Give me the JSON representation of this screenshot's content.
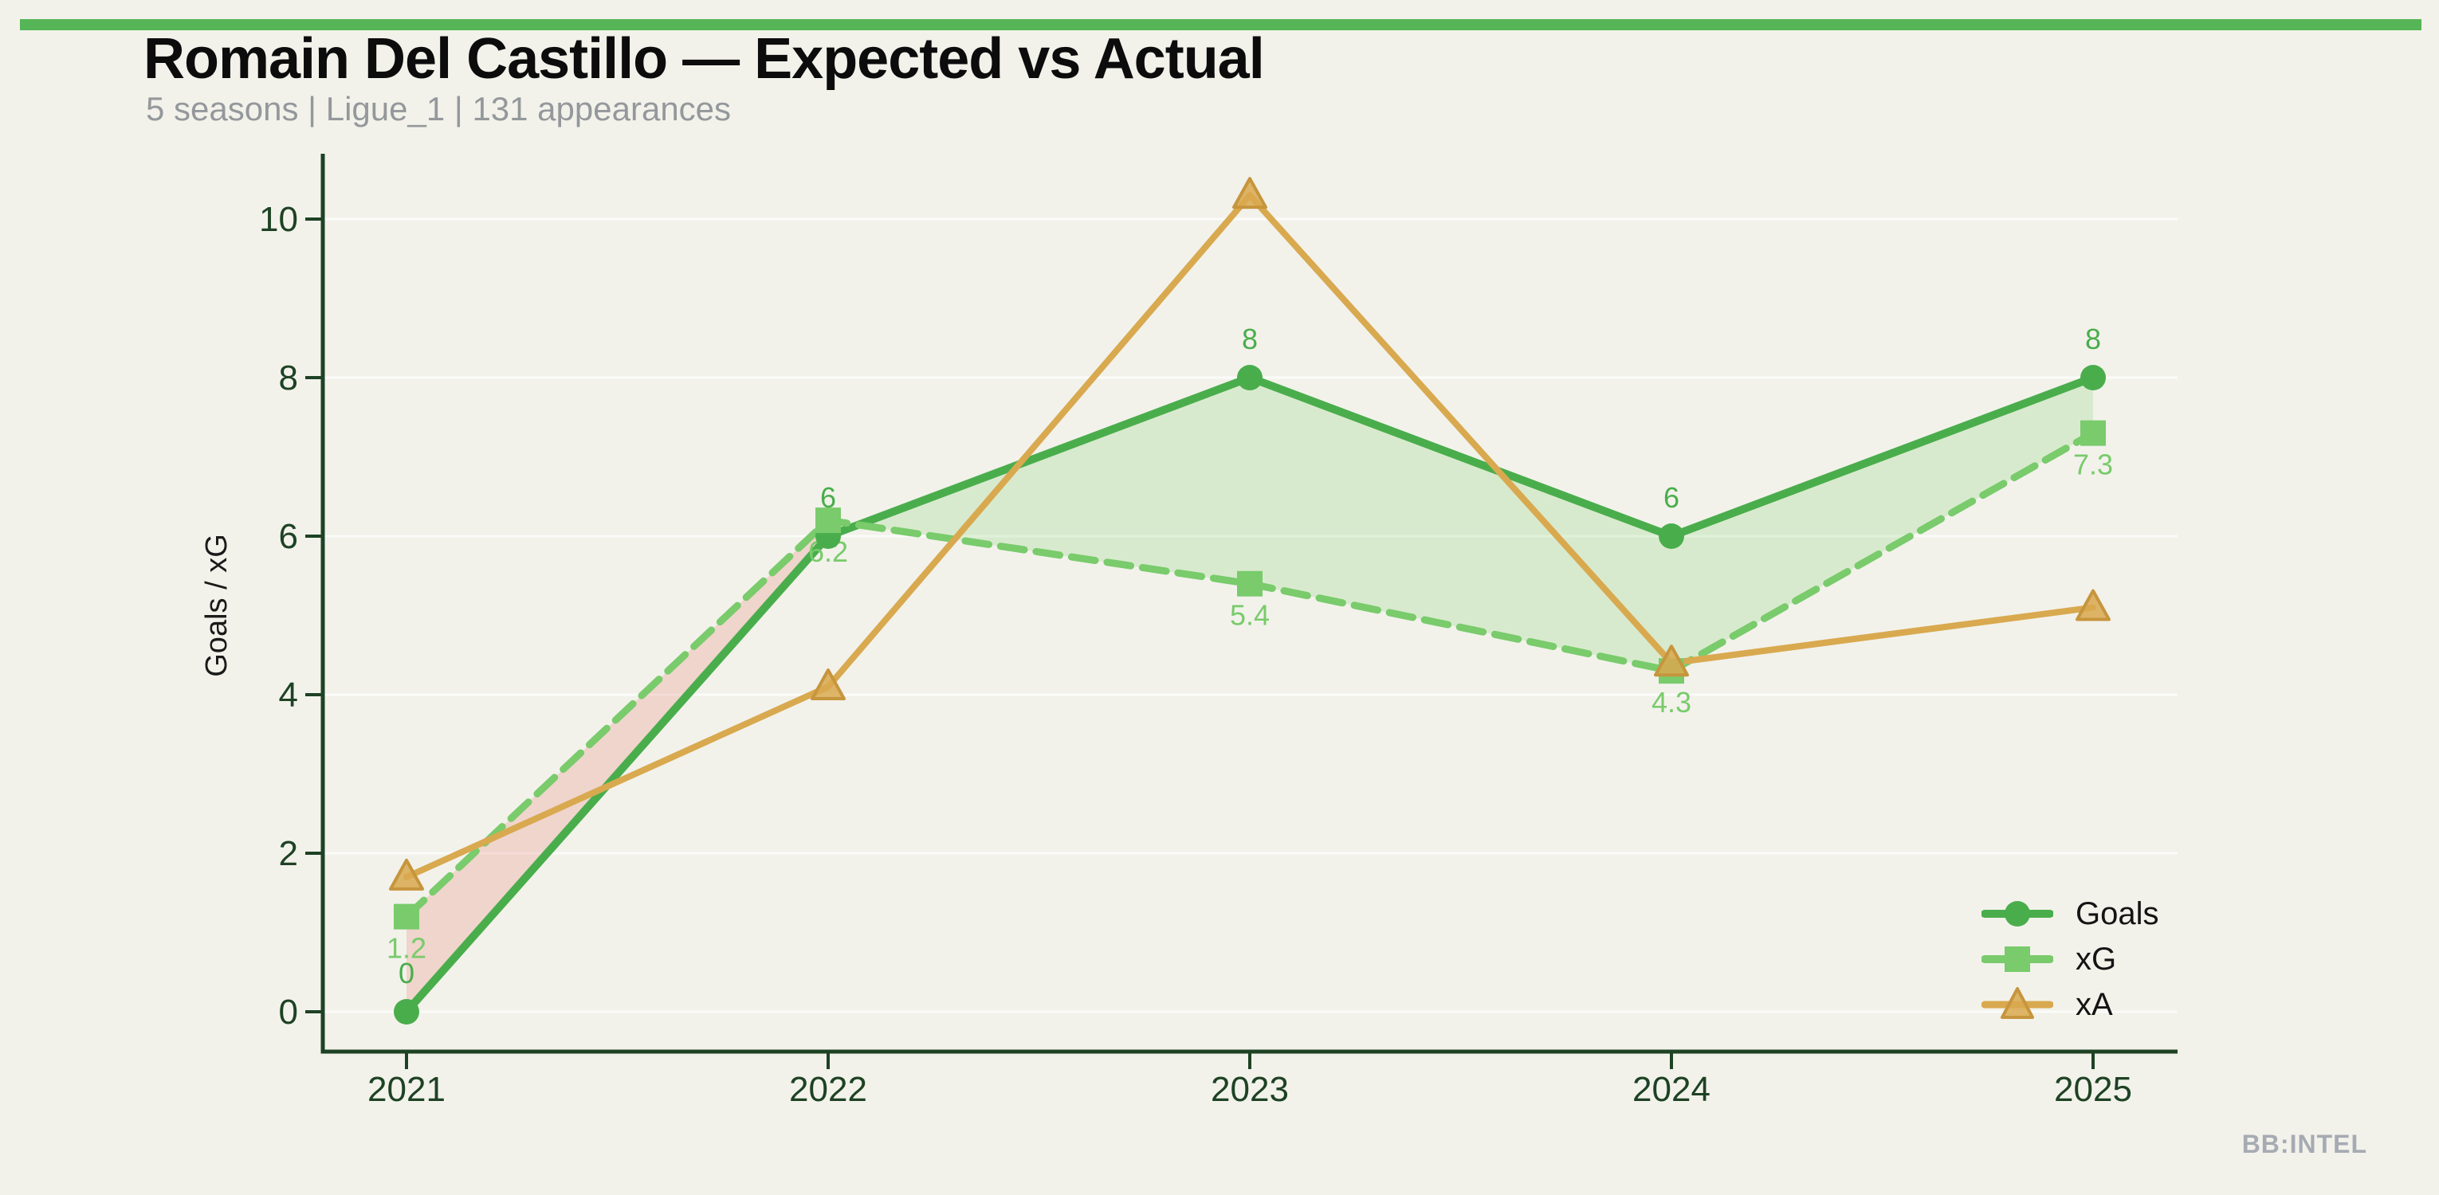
{
  "page": {
    "background_color": "#f2f2eb",
    "accent_bar_color": "#56b556",
    "watermark": "BB:INTEL"
  },
  "header": {
    "title": "Romain Del Castillo — Expected vs Actual",
    "subtitle": "5 seasons | Ligue_1 | 131 appearances"
  },
  "chart_data": {
    "type": "line",
    "x_categories": [
      "2021",
      "2022",
      "2023",
      "2024",
      "2025"
    ],
    "ylabel": "Goals / xG",
    "yticks": [
      0,
      2,
      4,
      6,
      8,
      10
    ],
    "ylim": [
      0,
      11.3
    ],
    "grid": "faint-horizontal-gridlines",
    "legend_position": "lower-right",
    "axis_color": "#1e4224",
    "tick_label_color": "#1e4224",
    "series": [
      {
        "name": "Goals",
        "marker": "circle",
        "line_style": "solid",
        "color": "#4aad4c",
        "values": [
          0,
          6,
          8,
          6,
          8
        ],
        "point_labels": [
          "0",
          "6",
          "8",
          "6",
          "8"
        ],
        "label_side": "above"
      },
      {
        "name": "xG",
        "marker": "square",
        "line_style": "dashed",
        "color": "#79cb6b",
        "values": [
          1.2,
          6.2,
          5.4,
          4.3,
          7.3
        ],
        "point_labels": [
          "1.2",
          "6.2",
          "5.4",
          "4.3",
          "7.3"
        ],
        "label_side": "below"
      },
      {
        "name": "xA",
        "marker": "triangle",
        "line_style": "solid",
        "color": "#d9a94f",
        "marker_edge_color": "#c6953d",
        "values": [
          1.7,
          4.1,
          10.3,
          4.4,
          5.1
        ],
        "point_labels": [],
        "label_side": "none"
      }
    ],
    "fill_between": {
      "series_a": "Goals",
      "series_b": "xG",
      "goals_above_color": "rgba(122,203,106,0.22)",
      "xg_above_color": "rgba(226,110,96,0.22)"
    }
  }
}
